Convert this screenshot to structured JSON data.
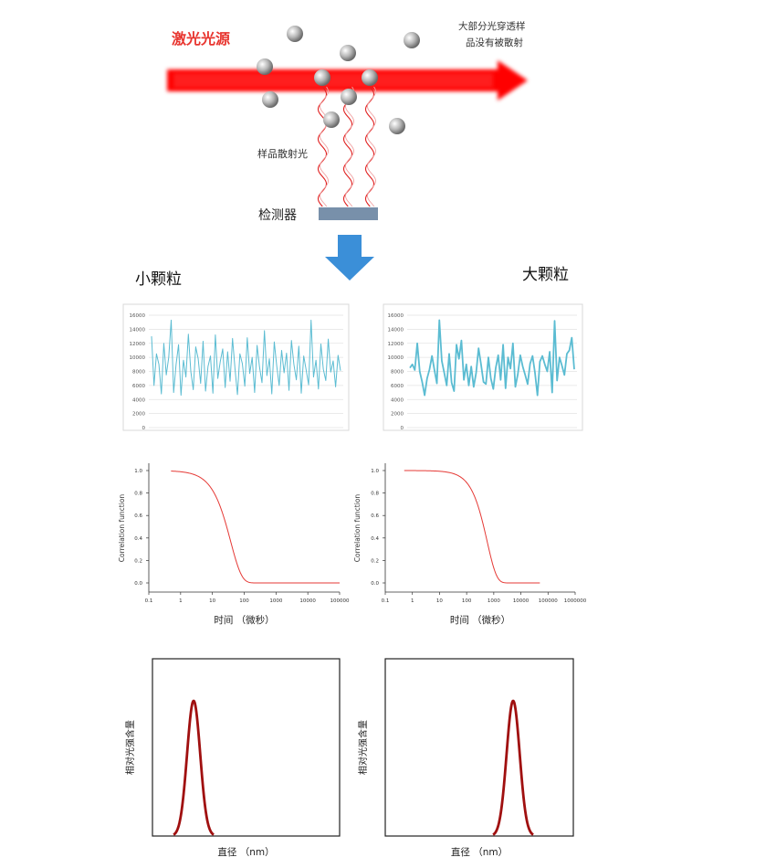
{
  "diagram": {
    "laser_label": "激光光源",
    "transmit_note_line1": "大部分光穿透样",
    "transmit_note_line2": "品没有被散射",
    "scatter_label": "样品散射光",
    "detector_label": "检测器",
    "small_label": "小颗粒",
    "large_label": "大颗粒"
  },
  "colors": {
    "laser": "#ff0000",
    "laser_label": "#e8352f",
    "wave": "#e02020",
    "detector": "#7890aa",
    "down_arrow": "#3b8fd8",
    "intensity_line": "#5bbcd2",
    "correlation_line": "#e53935",
    "peak_line": "#a01010"
  },
  "chart_data": [
    {
      "name": "small-intensity",
      "type": "line",
      "title": "",
      "xlabel": "",
      "ylabel": "",
      "ylim": [
        0,
        16000
      ],
      "yticks": [
        "0",
        "2000",
        "4000",
        "6000",
        "8000",
        "10000",
        "12000",
        "14000",
        "16000"
      ],
      "grid": true,
      "y": [
        13000,
        6000,
        10500,
        9000,
        4800,
        12000,
        7500,
        10000,
        15300,
        5000,
        9000,
        11800,
        4600,
        9600,
        7200,
        13300,
        8000,
        5400,
        11500,
        9800,
        6300,
        12300,
        5200,
        8700,
        10200,
        4900,
        13200,
        7000,
        9400,
        11200,
        5700,
        10800,
        6600,
        12700,
        8400,
        4700,
        10500,
        9100,
        5900,
        12800,
        7700,
        10000,
        5000,
        11700,
        8600,
        6400,
        13800,
        7400,
        9800,
        4800,
        12200,
        8800,
        6000,
        11000,
        7800,
        10600,
        5300,
        12400,
        9000,
        6800,
        11600,
        4900,
        10200,
        8200,
        6100,
        15300,
        7200,
        9600,
        5500,
        11900,
        8300,
        6700,
        12600,
        7900,
        9500,
        5800,
        10300,
        8100
      ]
    },
    {
      "name": "large-intensity",
      "type": "line",
      "title": "",
      "xlabel": "",
      "ylabel": "",
      "ylim": [
        0,
        16000
      ],
      "yticks": [
        "0",
        "2000",
        "4000",
        "6000",
        "8000",
        "10000",
        "12000",
        "14000",
        "16000"
      ],
      "grid": true,
      "y": [
        8500,
        9000,
        8200,
        12000,
        8000,
        6500,
        4600,
        7000,
        8300,
        10200,
        8200,
        6300,
        15300,
        9500,
        7800,
        6000,
        10500,
        6400,
        5200,
        11800,
        9800,
        12400,
        6800,
        9000,
        6000,
        8700,
        5800,
        7800,
        11300,
        9000,
        6500,
        6200,
        10000,
        7000,
        5500,
        8500,
        10300,
        6800,
        11800,
        5600,
        10000,
        8400,
        12000,
        5800,
        7600,
        10300,
        8700,
        7500,
        6200,
        9100,
        10200,
        7800,
        4600,
        9400,
        10200,
        9000,
        8000,
        10800,
        5000,
        15200,
        6700,
        10000,
        8800,
        7500,
        10500,
        11000,
        12800,
        8300
      ]
    },
    {
      "name": "small-correlation",
      "type": "line",
      "xscale": "log",
      "xlabel": "时间 （微秒）",
      "ylabel": "Correlation function",
      "ylim": [
        0,
        1.0
      ],
      "yticks": [
        "0.0",
        "0.2",
        "0.4",
        "0.6",
        "0.8",
        "1.0"
      ],
      "xticks": [
        "0.1",
        "1",
        "10",
        "100",
        "1000",
        "10000",
        "100000"
      ],
      "decay_time": 25,
      "x_range": [
        0.5,
        100000
      ]
    },
    {
      "name": "large-correlation",
      "type": "line",
      "xscale": "log",
      "xlabel": "时间 （微秒）",
      "ylabel": "Correlation function",
      "ylim": [
        0,
        1.0
      ],
      "yticks": [
        "0.0",
        "0.2",
        "0.4",
        "0.6",
        "0.8",
        "1.0"
      ],
      "xticks": [
        "0.1",
        "1",
        "10",
        "100",
        "1000",
        "10000",
        "100000",
        "1000000"
      ],
      "decay_time": 380,
      "x_range": [
        0.5,
        50000
      ]
    },
    {
      "name": "small-size-distribution",
      "type": "line",
      "xlabel": "直径 （nm）",
      "ylabel": "相对光强含量",
      "peak_position": 0.22
    },
    {
      "name": "large-size-distribution",
      "type": "line",
      "xlabel": "直径 （nm）",
      "ylabel": "相对光强含量",
      "peak_position": 0.68
    }
  ]
}
